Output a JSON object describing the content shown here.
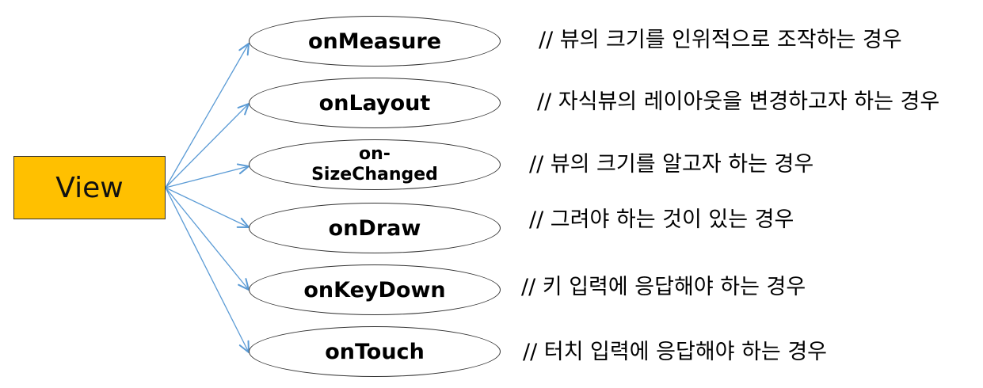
{
  "root": {
    "label": "View",
    "fill": "#ffc000"
  },
  "arrow_color": "#5b9bd5",
  "methods": [
    {
      "name": "onMeasure",
      "comment": "// 뷰의 크기를 인위적으로 조작하는 경우"
    },
    {
      "name": "onLayout",
      "comment": "// 자식뷰의 레이아웃을 변경하고자 하는 경우"
    },
    {
      "name_line1": "on-",
      "name_line2": "SizeChanged",
      "comment": "// 뷰의 크기를 알고자 하는 경우"
    },
    {
      "name": "onDraw",
      "comment": "// 그려야 하는 것이 있는 경우"
    },
    {
      "name": "onKeyDown",
      "comment": "// 키 입력에 응답해야 하는 경우"
    },
    {
      "name": "onTouch",
      "comment": "// 터치 입력에 응답해야 하는 경우"
    }
  ]
}
